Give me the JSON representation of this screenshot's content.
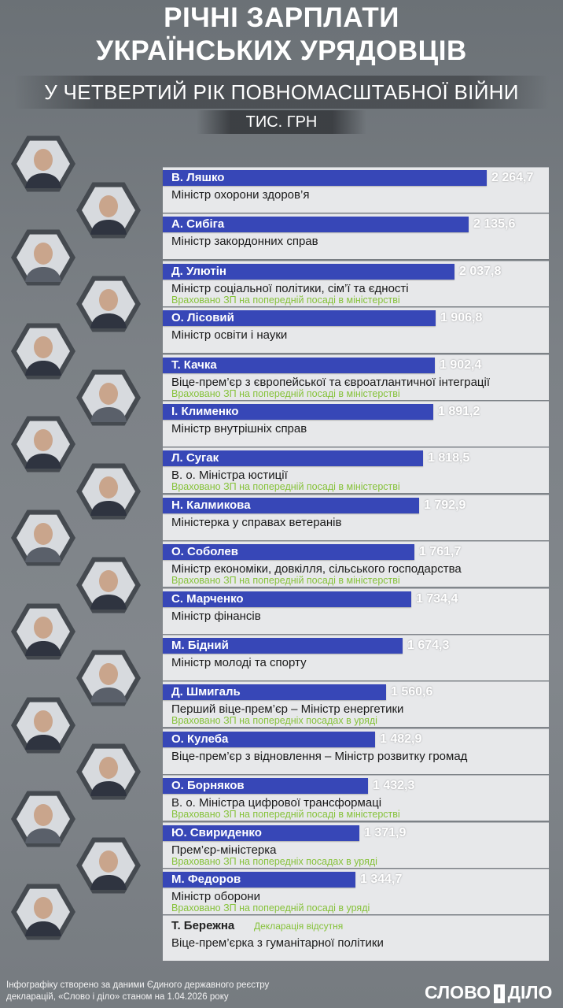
{
  "header": {
    "title_line1": "РІЧНІ ЗАРПЛАТИ",
    "title_line2": "УКРАЇНСЬКИХ УРЯДОВЦІВ",
    "subtitle": "У ЧЕТВЕРТИЙ РІК ПОВНОМАСШТАБНОЇ ВІЙНИ",
    "unit": "ТИС. ГРН"
  },
  "chart_data": {
    "type": "bar",
    "orientation": "horizontal",
    "title": "РІЧНІ ЗАРПЛАТИ УКРАЇНСЬКИХ УРЯДОВЦІВ",
    "subtitle": "У ЧЕТВЕРТИЙ РІК ПОВНОМАСШТАБНОЇ ВІЙНИ",
    "unit": "ТИС. ГРН",
    "xlim": [
      0,
      2600
    ],
    "bar_color": "#3747b7",
    "note_color": "#86c23a",
    "items": [
      {
        "name": "В. Ляшко",
        "value": 2264.7,
        "value_label": "2 264,7",
        "role": "Міністр охорони здоров’я",
        "note": ""
      },
      {
        "name": "А. Сибіга",
        "value": 2135.6,
        "value_label": "2 135,6",
        "role": "Міністр закордонних справ",
        "note": ""
      },
      {
        "name": "Д. Улютін",
        "value": 2037.8,
        "value_label": "2 037,8",
        "role": "Міністр соціальної політики, сім’ї та єдності",
        "note": "Враховано ЗП на попередній посаді в міністерстві"
      },
      {
        "name": "О. Лісовий",
        "value": 1906.8,
        "value_label": "1 906,8",
        "role": "Міністр освіти і науки",
        "note": ""
      },
      {
        "name": "Т. Качка",
        "value": 1902.4,
        "value_label": "1 902,4",
        "role": "Віце-прем’єр з європейської та євроатлантичної інтеграції",
        "note": "Враховано ЗП на попередній посаді в міністерстві"
      },
      {
        "name": "І. Клименко",
        "value": 1891.2,
        "value_label": "1 891,2",
        "role": "Міністр внутрішніх справ",
        "note": ""
      },
      {
        "name": "Л. Сугак",
        "value": 1818.5,
        "value_label": "1 818,5",
        "role": "В. о. Міністра юстиції",
        "note": "Враховано ЗП на попередній посаді в міністерстві"
      },
      {
        "name": "Н. Калмикова",
        "value": 1792.9,
        "value_label": "1 792,9",
        "role": "Міністерка у справах ветеранів",
        "note": ""
      },
      {
        "name": "О. Соболев",
        "value": 1761.7,
        "value_label": "1 761,7",
        "role": "Міністр економіки, довкілля, сільського господарства",
        "note": "Враховано ЗП на попередній посаді в міністерстві"
      },
      {
        "name": "С. Марченко",
        "value": 1734.4,
        "value_label": "1 734,4",
        "role": "Міністр фінансів",
        "note": ""
      },
      {
        "name": "М. Бідний",
        "value": 1674.3,
        "value_label": "1 674,3",
        "role": "Міністр молоді та спорту",
        "note": ""
      },
      {
        "name": "Д. Шмигаль",
        "value": 1560.6,
        "value_label": "1 560,6",
        "role": "Перший віце-прем’єр – Міністр енергетики",
        "note": "Враховано ЗП на попередніх посадах в уряді"
      },
      {
        "name": "О. Кулеба",
        "value": 1482.9,
        "value_label": "1 482,9",
        "role": "Віце-прем’єр з відновлення – Міністр розвитку громад",
        "note": ""
      },
      {
        "name": "О. Борняков",
        "value": 1432.3,
        "value_label": "1 432,3",
        "role": "В. о. Міністра цифрової трансформаці",
        "note": "Враховано ЗП на попередній посаді в міністерстві"
      },
      {
        "name": "Ю. Свириденко",
        "value": 1371.9,
        "value_label": "1 371,9",
        "role": "Прем’єр-міністерка",
        "note": "Враховано ЗП на попередніх посадах в уряді"
      },
      {
        "name": "М. Федоров",
        "value": 1344.7,
        "value_label": "1 344,7",
        "role": "Міністр оборони",
        "note": "Враховано ЗП на попередній посаді в уряді"
      },
      {
        "name": "Т. Бережна",
        "value": null,
        "value_label": "",
        "role": "Віце-прем’єрка з гуманітарної політики",
        "note": "",
        "absent_label": "Декларація відсутня"
      }
    ]
  },
  "footer": {
    "source_line1": "Інфографіку створено за даними Єдиного державного реєстру",
    "source_line2": "декларацій, «Слово і діло» станом на 1.04.2026 року"
  },
  "logo": {
    "word1": "СЛОВО",
    "word2": "І",
    "word3": "ДІЛО"
  }
}
